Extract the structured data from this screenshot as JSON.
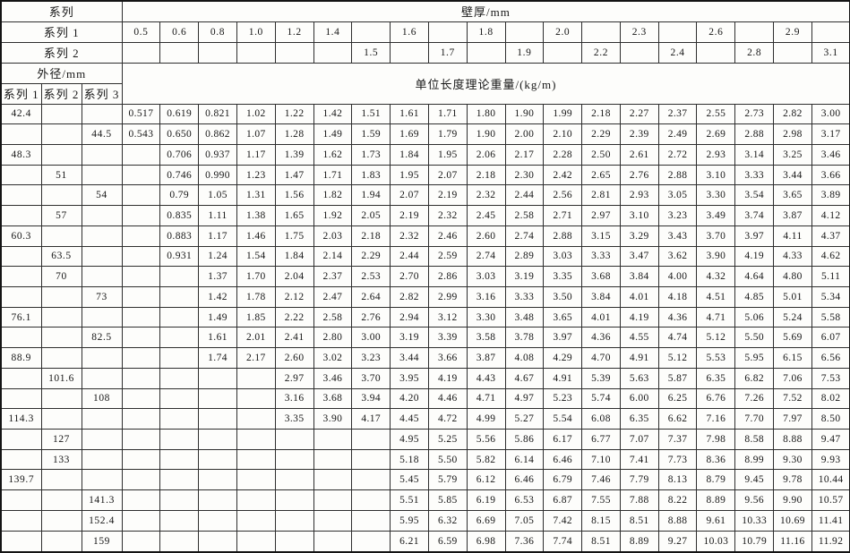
{
  "header": {
    "series": "系列",
    "wall_thickness": "壁厚/mm",
    "series1": "系列 1",
    "series2": "系列 2",
    "outer_diameter": "外径/mm",
    "weight": "单位长度理论重量/(kg/m)",
    "diameter_cols": [
      "系列 1",
      "系列 2",
      "系列 3"
    ],
    "series1_thickness": [
      "0.5",
      "0.6",
      "0.8",
      "1.0",
      "1.2",
      "1.4",
      "",
      "1.6",
      "",
      "1.8",
      "",
      "2.0",
      "",
      "2.3",
      "",
      "2.6",
      "",
      "2.9",
      ""
    ],
    "series2_thickness": [
      "",
      "",
      "",
      "",
      "",
      "",
      "1.5",
      "",
      "1.7",
      "",
      "1.9",
      "",
      "2.2",
      "",
      "2.4",
      "",
      "2.8",
      "",
      "3.1"
    ]
  },
  "rows": [
    {
      "d": [
        "42.4",
        "",
        ""
      ],
      "v": [
        "0.517",
        "0.619",
        "0.821",
        "1.02",
        "1.22",
        "1.42",
        "1.51",
        "1.61",
        "1.71",
        "1.80",
        "1.90",
        "1.99",
        "2.18",
        "2.27",
        "2.37",
        "2.55",
        "2.73",
        "2.82",
        "3.00"
      ]
    },
    {
      "d": [
        "",
        "",
        "44.5"
      ],
      "v": [
        "0.543",
        "0.650",
        "0.862",
        "1.07",
        "1.28",
        "1.49",
        "1.59",
        "1.69",
        "1.79",
        "1.90",
        "2.00",
        "2.10",
        "2.29",
        "2.39",
        "2.49",
        "2.69",
        "2.88",
        "2.98",
        "3.17"
      ]
    },
    {
      "d": [
        "48.3",
        "",
        ""
      ],
      "v": [
        "",
        "0.706",
        "0.937",
        "1.17",
        "1.39",
        "1.62",
        "1.73",
        "1.84",
        "1.95",
        "2.06",
        "2.17",
        "2.28",
        "2.50",
        "2.61",
        "2.72",
        "2.93",
        "3.14",
        "3.25",
        "3.46"
      ]
    },
    {
      "d": [
        "",
        "51",
        ""
      ],
      "v": [
        "",
        "0.746",
        "0.990",
        "1.23",
        "1.47",
        "1.71",
        "1.83",
        "1.95",
        "2.07",
        "2.18",
        "2.30",
        "2.42",
        "2.65",
        "2.76",
        "2.88",
        "3.10",
        "3.33",
        "3.44",
        "3.66"
      ]
    },
    {
      "d": [
        "",
        "",
        "54"
      ],
      "v": [
        "",
        "0.79",
        "1.05",
        "1.31",
        "1.56",
        "1.82",
        "1.94",
        "2.07",
        "2.19",
        "2.32",
        "2.44",
        "2.56",
        "2.81",
        "2.93",
        "3.05",
        "3.30",
        "3.54",
        "3.65",
        "3.89"
      ]
    },
    {
      "d": [
        "",
        "57",
        ""
      ],
      "v": [
        "",
        "0.835",
        "1.11",
        "1.38",
        "1.65",
        "1.92",
        "2.05",
        "2.19",
        "2.32",
        "2.45",
        "2.58",
        "2.71",
        "2.97",
        "3.10",
        "3.23",
        "3.49",
        "3.74",
        "3.87",
        "4.12"
      ]
    },
    {
      "d": [
        "60.3",
        "",
        ""
      ],
      "v": [
        "",
        "0.883",
        "1.17",
        "1.46",
        "1.75",
        "2.03",
        "2.18",
        "2.32",
        "2.46",
        "2.60",
        "2.74",
        "2.88",
        "3.15",
        "3.29",
        "3.43",
        "3.70",
        "3.97",
        "4.11",
        "4.37"
      ]
    },
    {
      "d": [
        "",
        "63.5",
        ""
      ],
      "v": [
        "",
        "0.931",
        "1.24",
        "1.54",
        "1.84",
        "2.14",
        "2.29",
        "2.44",
        "2.59",
        "2.74",
        "2.89",
        "3.03",
        "3.33",
        "3.47",
        "3.62",
        "3.90",
        "4.19",
        "4.33",
        "4.62"
      ]
    },
    {
      "d": [
        "",
        "70",
        ""
      ],
      "v": [
        "",
        "",
        "1.37",
        "1.70",
        "2.04",
        "2.37",
        "2.53",
        "2.70",
        "2.86",
        "3.03",
        "3.19",
        "3.35",
        "3.68",
        "3.84",
        "4.00",
        "4.32",
        "4.64",
        "4.80",
        "5.11"
      ]
    },
    {
      "d": [
        "",
        "",
        "73"
      ],
      "v": [
        "",
        "",
        "1.42",
        "1.78",
        "2.12",
        "2.47",
        "2.64",
        "2.82",
        "2.99",
        "3.16",
        "3.33",
        "3.50",
        "3.84",
        "4.01",
        "4.18",
        "4.51",
        "4.85",
        "5.01",
        "5.34"
      ]
    },
    {
      "d": [
        "76.1",
        "",
        ""
      ],
      "v": [
        "",
        "",
        "1.49",
        "1.85",
        "2.22",
        "2.58",
        "2.76",
        "2.94",
        "3.12",
        "3.30",
        "3.48",
        "3.65",
        "4.01",
        "4.19",
        "4.36",
        "4.71",
        "5.06",
        "5.24",
        "5.58"
      ]
    },
    {
      "d": [
        "",
        "",
        "82.5"
      ],
      "v": [
        "",
        "",
        "1.61",
        "2.01",
        "2.41",
        "2.80",
        "3.00",
        "3.19",
        "3.39",
        "3.58",
        "3.78",
        "3.97",
        "4.36",
        "4.55",
        "4.74",
        "5.12",
        "5.50",
        "5.69",
        "6.07"
      ]
    },
    {
      "d": [
        "88.9",
        "",
        ""
      ],
      "v": [
        "",
        "",
        "1.74",
        "2.17",
        "2.60",
        "3.02",
        "3.23",
        "3.44",
        "3.66",
        "3.87",
        "4.08",
        "4.29",
        "4.70",
        "4.91",
        "5.12",
        "5.53",
        "5.95",
        "6.15",
        "6.56"
      ]
    },
    {
      "d": [
        "",
        "101.6",
        ""
      ],
      "v": [
        "",
        "",
        "",
        "",
        "2.97",
        "3.46",
        "3.70",
        "3.95",
        "4.19",
        "4.43",
        "4.67",
        "4.91",
        "5.39",
        "5.63",
        "5.87",
        "6.35",
        "6.82",
        "7.06",
        "7.53"
      ]
    },
    {
      "d": [
        "",
        "",
        "108"
      ],
      "v": [
        "",
        "",
        "",
        "",
        "3.16",
        "3.68",
        "3.94",
        "4.20",
        "4.46",
        "4.71",
        "4.97",
        "5.23",
        "5.74",
        "6.00",
        "6.25",
        "6.76",
        "7.26",
        "7.52",
        "8.02"
      ]
    },
    {
      "d": [
        "114.3",
        "",
        ""
      ],
      "v": [
        "",
        "",
        "",
        "",
        "3.35",
        "3.90",
        "4.17",
        "4.45",
        "4.72",
        "4.99",
        "5.27",
        "5.54",
        "6.08",
        "6.35",
        "6.62",
        "7.16",
        "7.70",
        "7.97",
        "8.50"
      ]
    },
    {
      "d": [
        "",
        "127",
        ""
      ],
      "v": [
        "",
        "",
        "",
        "",
        "",
        "",
        "",
        "4.95",
        "5.25",
        "5.56",
        "5.86",
        "6.17",
        "6.77",
        "7.07",
        "7.37",
        "7.98",
        "8.58",
        "8.88",
        "9.47"
      ]
    },
    {
      "d": [
        "",
        "133",
        ""
      ],
      "v": [
        "",
        "",
        "",
        "",
        "",
        "",
        "",
        "5.18",
        "5.50",
        "5.82",
        "6.14",
        "6.46",
        "7.10",
        "7.41",
        "7.73",
        "8.36",
        "8.99",
        "9.30",
        "9.93"
      ]
    },
    {
      "d": [
        "139.7",
        "",
        ""
      ],
      "v": [
        "",
        "",
        "",
        "",
        "",
        "",
        "",
        "5.45",
        "5.79",
        "6.12",
        "6.46",
        "6.79",
        "7.46",
        "7.79",
        "8.13",
        "8.79",
        "9.45",
        "9.78",
        "10.44"
      ]
    },
    {
      "d": [
        "",
        "",
        "141.3"
      ],
      "v": [
        "",
        "",
        "",
        "",
        "",
        "",
        "",
        "5.51",
        "5.85",
        "6.19",
        "6.53",
        "6.87",
        "7.55",
        "7.88",
        "8.22",
        "8.89",
        "9.56",
        "9.90",
        "10.57"
      ]
    },
    {
      "d": [
        "",
        "",
        "152.4"
      ],
      "v": [
        "",
        "",
        "",
        "",
        "",
        "",
        "",
        "5.95",
        "6.32",
        "6.69",
        "7.05",
        "7.42",
        "8.15",
        "8.51",
        "8.88",
        "9.61",
        "10.33",
        "10.69",
        "11.41"
      ]
    },
    {
      "d": [
        "",
        "",
        "159"
      ],
      "v": [
        "",
        "",
        "",
        "",
        "",
        "",
        "",
        "6.21",
        "6.59",
        "6.98",
        "7.36",
        "7.74",
        "8.51",
        "8.89",
        "9.27",
        "10.03",
        "10.79",
        "11.16",
        "11.92"
      ]
    }
  ]
}
